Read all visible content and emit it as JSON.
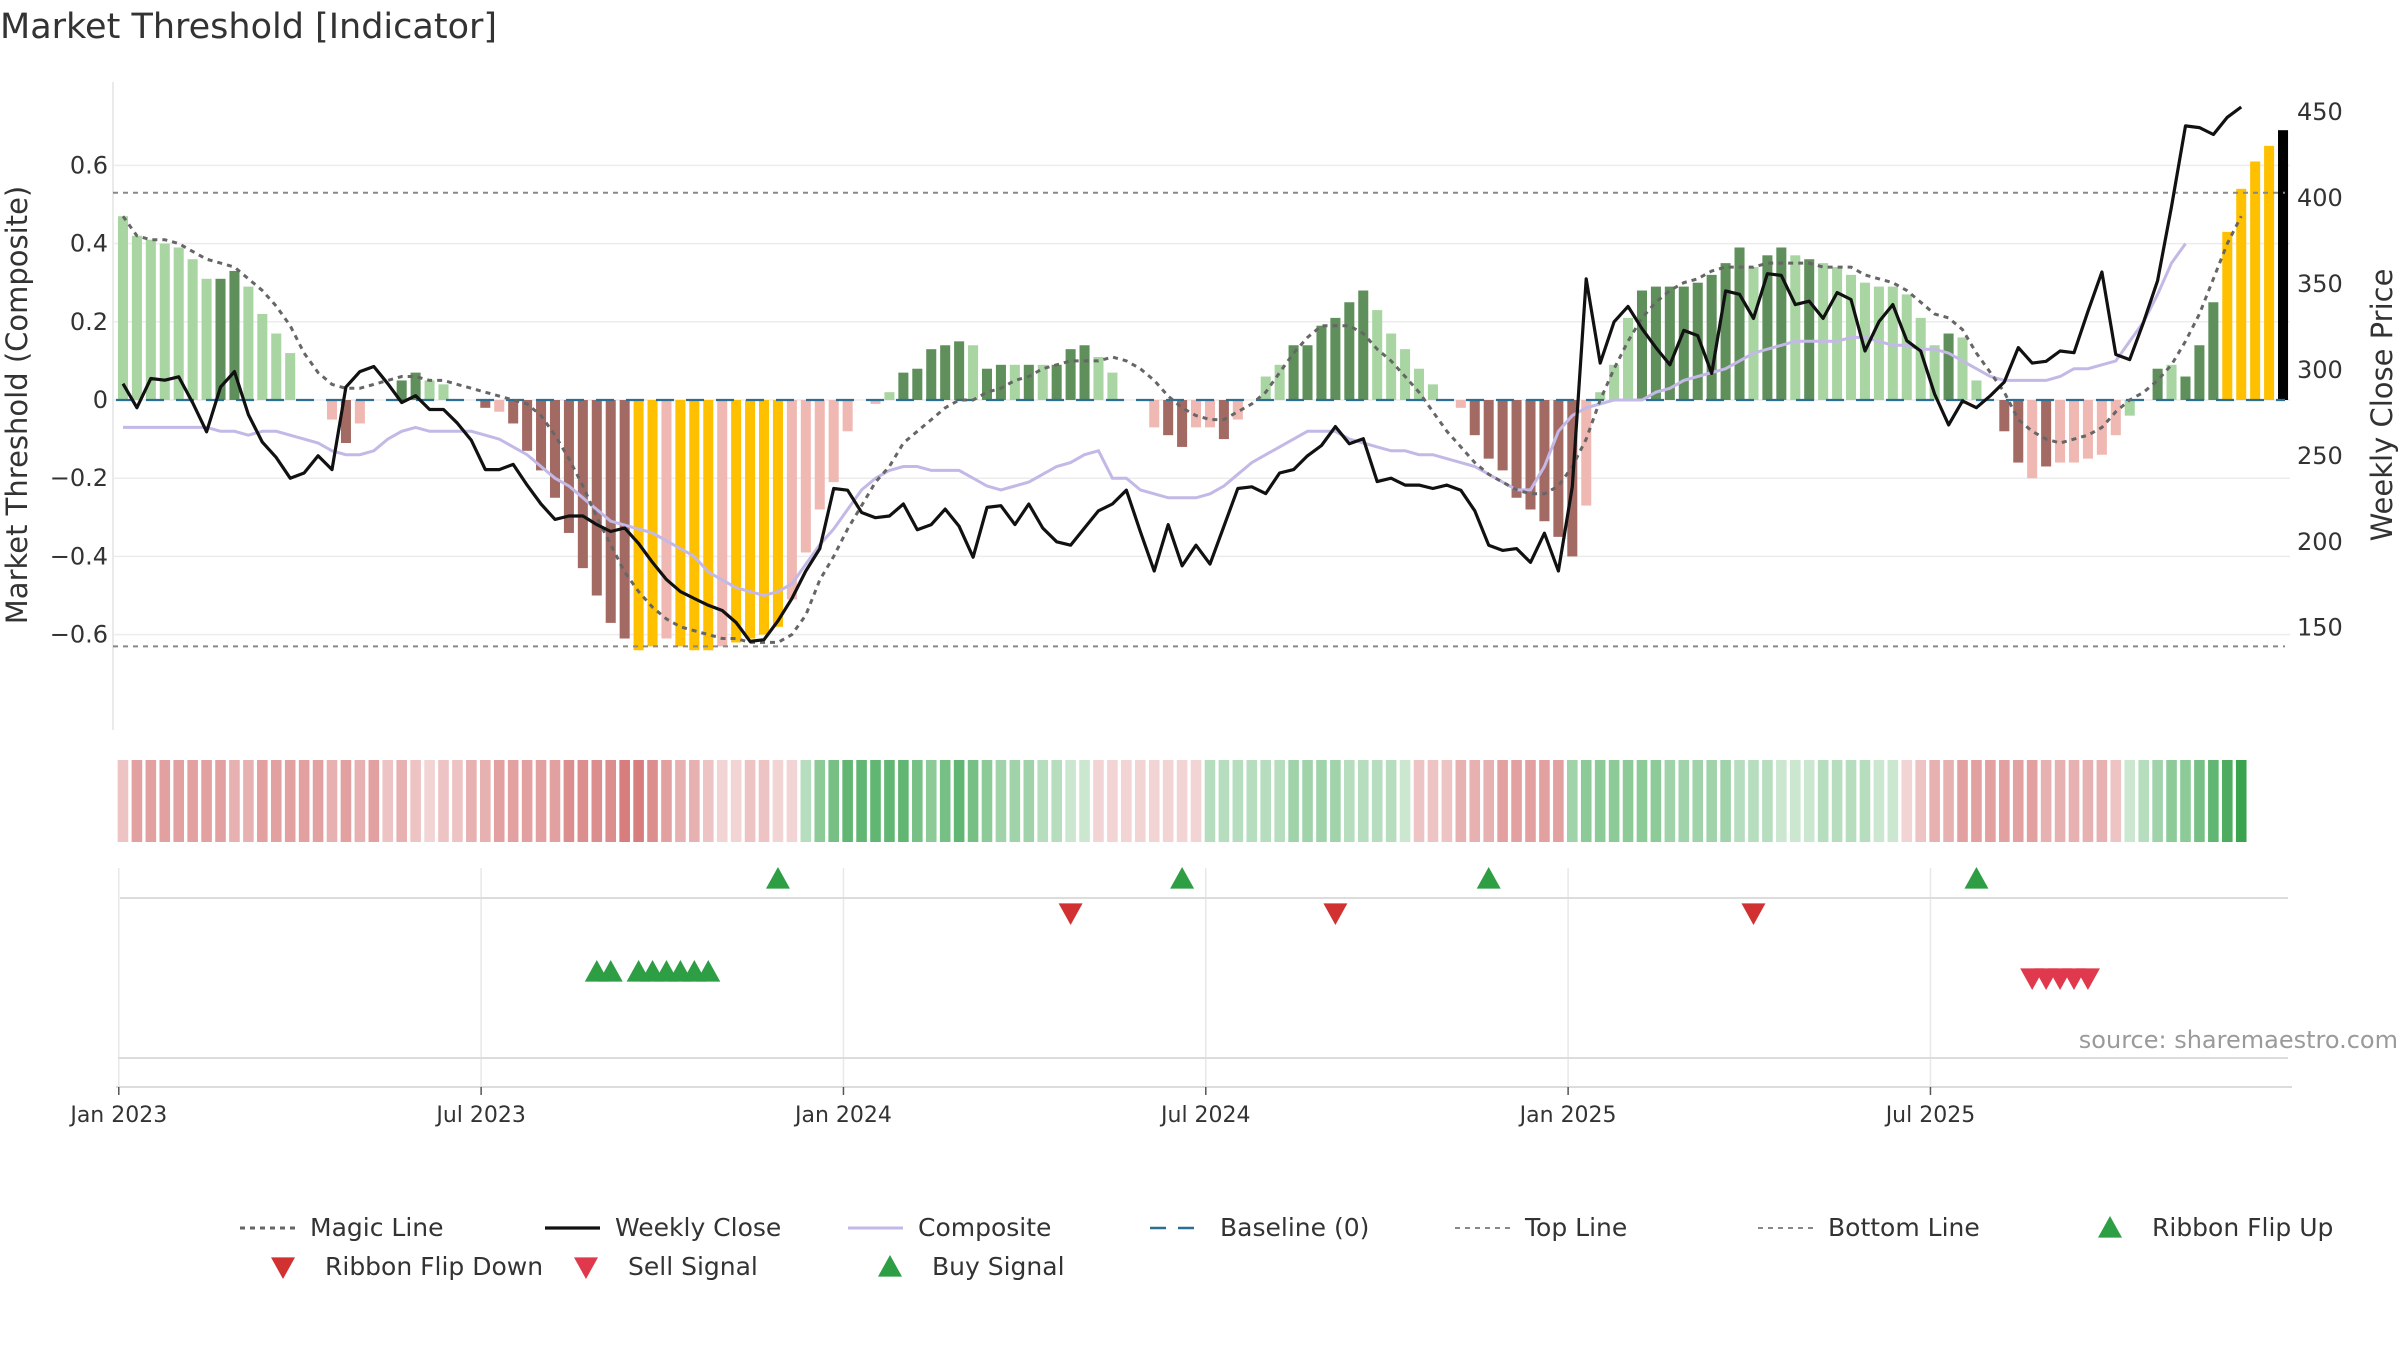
{
  "chart_data": {
    "type": "bar",
    "title": "Market Threshold [Indicator]",
    "ylabel_left": "Market Threshold (Composite)",
    "ylabel_right": "Weekly Close Price",
    "ylim_left": [
      -0.78,
      0.78
    ],
    "ylim_right": [
      105,
      460
    ],
    "left_ticks": [
      "0.6",
      "0.4",
      "0.2",
      "0",
      "−0.2",
      "−0.4",
      "−0.6"
    ],
    "left_tick_values": [
      0.6,
      0.4,
      0.2,
      0,
      -0.2,
      -0.4,
      -0.6
    ],
    "right_ticks": [
      "450",
      "400",
      "350",
      "300",
      "250",
      "200",
      "150"
    ],
    "right_tick_values": [
      450,
      400,
      350,
      300,
      250,
      200,
      150
    ],
    "x_ticks": [
      "Jan 2023",
      "Jul 2023",
      "Jan 2024",
      "Jul 2024",
      "Jan 2025",
      "Jul 2025"
    ],
    "x_tick_weeks": [
      1,
      27,
      53,
      79,
      105,
      131
    ],
    "top_line": 0.53,
    "bottom_line": -0.63,
    "baseline": 0,
    "grid": true,
    "source": "source: sharemaestro.com",
    "composite_bars": [
      0.47,
      0.42,
      0.41,
      0.4,
      0.39,
      0.36,
      0.31,
      0.31,
      0.33,
      0.29,
      0.22,
      0.17,
      0.12,
      0.0,
      0.0,
      -0.05,
      -0.11,
      -0.06,
      0.0,
      0.0,
      0.05,
      0.07,
      0.05,
      0.04,
      0.0,
      0.0,
      -0.02,
      -0.03,
      -0.06,
      -0.13,
      -0.18,
      -0.25,
      -0.34,
      -0.43,
      -0.5,
      -0.57,
      -0.61,
      -0.64,
      -0.63,
      -0.61,
      -0.63,
      -0.64,
      -0.64,
      -0.63,
      -0.62,
      -0.61,
      -0.6,
      -0.58,
      -0.51,
      -0.39,
      -0.28,
      -0.21,
      -0.08,
      0.0,
      -0.01,
      0.02,
      0.07,
      0.08,
      0.13,
      0.14,
      0.15,
      0.14,
      0.08,
      0.09,
      0.09,
      0.09,
      0.09,
      0.09,
      0.13,
      0.14,
      0.11,
      0.07,
      0.0,
      0.0,
      -0.07,
      -0.09,
      -0.12,
      -0.07,
      -0.07,
      -0.1,
      -0.05,
      0.0,
      0.06,
      0.09,
      0.14,
      0.14,
      0.19,
      0.21,
      0.25,
      0.28,
      0.23,
      0.17,
      0.13,
      0.08,
      0.04,
      0.0,
      -0.02,
      -0.09,
      -0.15,
      -0.18,
      -0.25,
      -0.28,
      -0.31,
      -0.35,
      -0.4,
      -0.27,
      0.02,
      0.09,
      0.21,
      0.28,
      0.29,
      0.29,
      0.29,
      0.3,
      0.32,
      0.35,
      0.39,
      0.34,
      0.37,
      0.39,
      0.37,
      0.36,
      0.35,
      0.34,
      0.32,
      0.3,
      0.29,
      0.29,
      0.27,
      0.21,
      0.14,
      0.17,
      0.16,
      0.05,
      0.0,
      -0.08,
      -0.16,
      -0.2,
      -0.17,
      -0.16,
      -0.16,
      -0.15,
      -0.14,
      -0.09,
      -0.04,
      0.0,
      0.08,
      0.09,
      0.06,
      0.14,
      0.25,
      0.43,
      0.54,
      0.61,
      0.65,
      0.69
    ],
    "bar_colors": [
      "#a8d5a2",
      "#a8d5a2",
      "#a8d5a2",
      "#a8d5a2",
      "#a8d5a2",
      "#a8d5a2",
      "#a8d5a2",
      "#5f8f5a",
      "#5f8f5a",
      "#a8d5a2",
      "#a8d5a2",
      "#a8d5a2",
      "#a8d5a2",
      "#a8d5a2",
      "#a8d5a2",
      "#f0b8b2",
      "#a36a64",
      "#f0b8b2",
      "#a8d5a2",
      "#a8d5a2",
      "#5f8f5a",
      "#5f8f5a",
      "#a8d5a2",
      "#a8d5a2",
      "#a8d5a2",
      "#f0b8b2",
      "#a36a64",
      "#f0b8b2",
      "#a36a64",
      "#a36a64",
      "#a36a64",
      "#a36a64",
      "#a36a64",
      "#a36a64",
      "#a36a64",
      "#a36a64",
      "#a36a64",
      "#ffc000",
      "#ffc000",
      "#f0b8b2",
      "#ffc000",
      "#ffc000",
      "#ffc000",
      "#f0b8b2",
      "#ffc000",
      "#ffc000",
      "#ffc000",
      "#ffc000",
      "#f0b8b2",
      "#f0b8b2",
      "#f0b8b2",
      "#f0b8b2",
      "#f0b8b2",
      "#f0b8b2",
      "#f0b8b2",
      "#a8d5a2",
      "#5f8f5a",
      "#5f8f5a",
      "#5f8f5a",
      "#5f8f5a",
      "#5f8f5a",
      "#a8d5a2",
      "#5f8f5a",
      "#5f8f5a",
      "#a8d5a2",
      "#5f8f5a",
      "#a8d5a2",
      "#5f8f5a",
      "#5f8f5a",
      "#5f8f5a",
      "#a8d5a2",
      "#a8d5a2",
      "#a8d5a2",
      "#f0b8b2",
      "#f0b8b2",
      "#a36a64",
      "#a36a64",
      "#f0b8b2",
      "#f0b8b2",
      "#a36a64",
      "#f0b8b2",
      "#a8d5a2",
      "#a8d5a2",
      "#a8d5a2",
      "#5f8f5a",
      "#5f8f5a",
      "#5f8f5a",
      "#5f8f5a",
      "#5f8f5a",
      "#5f8f5a",
      "#a8d5a2",
      "#a8d5a2",
      "#a8d5a2",
      "#a8d5a2",
      "#a8d5a2",
      "#a8d5a2",
      "#f0b8b2",
      "#a36a64",
      "#a36a64",
      "#a36a64",
      "#a36a64",
      "#a36a64",
      "#a36a64",
      "#a36a64",
      "#a36a64",
      "#f0b8b2",
      "#a8d5a2",
      "#a8d5a2",
      "#a8d5a2",
      "#5f8f5a",
      "#5f8f5a",
      "#5f8f5a",
      "#5f8f5a",
      "#5f8f5a",
      "#5f8f5a",
      "#5f8f5a",
      "#5f8f5a",
      "#a8d5a2",
      "#5f8f5a",
      "#5f8f5a",
      "#a8d5a2",
      "#5f8f5a",
      "#a8d5a2",
      "#a8d5a2",
      "#a8d5a2",
      "#a8d5a2",
      "#a8d5a2",
      "#a8d5a2",
      "#a8d5a2",
      "#a8d5a2",
      "#a8d5a2",
      "#5f8f5a",
      "#a8d5a2",
      "#a8d5a2",
      "#f0b8b2",
      "#a36a64",
      "#a36a64",
      "#f0b8b2",
      "#a36a64",
      "#f0b8b2",
      "#f0b8b2",
      "#f0b8b2",
      "#f0b8b2",
      "#f0b8b2",
      "#a8d5a2",
      "#a8d5a2",
      "#5f8f5a",
      "#a8d5a2",
      "#5f8f5a",
      "#5f8f5a",
      "#5f8f5a",
      "#ffc000",
      "#ffc000",
      "#ffc000",
      "#ffc000"
    ],
    "composite_line": [
      -0.07,
      -0.07,
      -0.07,
      -0.07,
      -0.07,
      -0.07,
      -0.07,
      -0.08,
      -0.08,
      -0.09,
      -0.08,
      -0.08,
      -0.09,
      -0.1,
      -0.11,
      -0.13,
      -0.14,
      -0.14,
      -0.13,
      -0.1,
      -0.08,
      -0.07,
      -0.08,
      -0.08,
      -0.08,
      -0.08,
      -0.09,
      -0.1,
      -0.12,
      -0.14,
      -0.17,
      -0.2,
      -0.22,
      -0.25,
      -0.28,
      -0.31,
      -0.32,
      -0.33,
      -0.34,
      -0.36,
      -0.38,
      -0.4,
      -0.44,
      -0.46,
      -0.48,
      -0.49,
      -0.5,
      -0.49,
      -0.47,
      -0.42,
      -0.37,
      -0.33,
      -0.28,
      -0.23,
      -0.2,
      -0.18,
      -0.17,
      -0.17,
      -0.18,
      -0.18,
      -0.18,
      -0.2,
      -0.22,
      -0.23,
      -0.22,
      -0.21,
      -0.19,
      -0.17,
      -0.16,
      -0.14,
      -0.13,
      -0.2,
      -0.2,
      -0.23,
      -0.24,
      -0.25,
      -0.25,
      -0.25,
      -0.24,
      -0.22,
      -0.19,
      -0.16,
      -0.14,
      -0.12,
      -0.1,
      -0.08,
      -0.08,
      -0.08,
      -0.1,
      -0.11,
      -0.12,
      -0.13,
      -0.13,
      -0.14,
      -0.14,
      -0.15,
      -0.16,
      -0.17,
      -0.19,
      -0.21,
      -0.23,
      -0.23,
      -0.17,
      -0.08,
      -0.04,
      -0.02,
      -0.01,
      0.0,
      0.0,
      0.0,
      0.02,
      0.03,
      0.05,
      0.06,
      0.07,
      0.08,
      0.1,
      0.12,
      0.13,
      0.14,
      0.15,
      0.15,
      0.15,
      0.15,
      0.16,
      0.16,
      0.15,
      0.14,
      0.14,
      0.13,
      0.13,
      0.12,
      0.1,
      0.08,
      0.06,
      0.05,
      0.05,
      0.05,
      0.05,
      0.06,
      0.08,
      0.08,
      0.09,
      0.1,
      0.15,
      0.2,
      0.27,
      0.35,
      0.4
    ],
    "weekly_close": [
      292,
      278,
      295,
      294,
      296,
      281,
      264,
      290,
      299,
      274,
      258,
      249,
      237,
      240,
      250,
      242,
      290,
      299,
      302,
      292,
      281,
      285,
      277,
      277,
      269,
      259,
      242,
      242,
      245,
      233,
      222,
      213,
      215,
      215,
      210,
      206,
      208,
      199,
      188,
      178,
      171,
      167,
      163,
      160,
      153,
      142,
      143,
      154,
      167,
      183,
      196,
      231,
      230,
      217,
      214,
      215,
      222,
      207,
      210,
      219,
      209,
      191,
      220,
      221,
      210,
      222,
      208,
      200,
      198,
      208,
      218,
      222,
      230,
      206,
      183,
      210,
      186,
      198,
      187,
      209,
      231,
      232,
      228,
      240,
      242,
      250,
      256,
      267,
      257,
      260,
      235,
      237,
      233,
      233,
      231,
      233,
      230,
      218,
      198,
      195,
      196,
      188,
      205,
      183,
      232,
      353,
      304,
      328,
      337,
      324,
      313,
      303,
      323,
      320,
      298,
      346,
      344,
      330,
      356,
      355,
      338,
      340,
      330,
      345,
      341,
      311,
      328,
      338,
      317,
      311,
      286,
      268,
      282,
      278,
      285,
      293,
      313,
      304,
      305,
      311,
      310,
      334,
      357,
      309,
      306,
      328,
      352,
      395,
      442,
      441,
      437,
      447,
      453
    ],
    "magic_line": [
      0.47,
      0.42,
      0.41,
      0.41,
      0.4,
      0.38,
      0.36,
      0.35,
      0.34,
      0.31,
      0.28,
      0.24,
      0.19,
      0.12,
      0.07,
      0.04,
      0.03,
      0.03,
      0.04,
      0.05,
      0.06,
      0.06,
      0.05,
      0.05,
      0.04,
      0.03,
      0.02,
      0.01,
      0.0,
      -0.01,
      -0.04,
      -0.09,
      -0.15,
      -0.22,
      -0.3,
      -0.37,
      -0.44,
      -0.49,
      -0.53,
      -0.56,
      -0.58,
      -0.59,
      -0.6,
      -0.61,
      -0.61,
      -0.62,
      -0.62,
      -0.62,
      -0.6,
      -0.55,
      -0.46,
      -0.4,
      -0.33,
      -0.27,
      -0.21,
      -0.17,
      -0.11,
      -0.08,
      -0.05,
      -0.02,
      0.0,
      0.0,
      0.02,
      0.03,
      0.05,
      0.06,
      0.08,
      0.09,
      0.1,
      0.1,
      0.1,
      0.11,
      0.1,
      0.08,
      0.05,
      0.01,
      -0.02,
      -0.04,
      -0.05,
      -0.05,
      -0.03,
      -0.01,
      0.02,
      0.07,
      0.12,
      0.16,
      0.19,
      0.19,
      0.19,
      0.17,
      0.13,
      0.1,
      0.06,
      0.02,
      -0.03,
      -0.08,
      -0.12,
      -0.16,
      -0.19,
      -0.21,
      -0.23,
      -0.24,
      -0.24,
      -0.22,
      -0.17,
      -0.1,
      0.0,
      0.08,
      0.15,
      0.21,
      0.25,
      0.28,
      0.3,
      0.31,
      0.33,
      0.34,
      0.34,
      0.34,
      0.35,
      0.35,
      0.35,
      0.35,
      0.34,
      0.34,
      0.34,
      0.32,
      0.31,
      0.3,
      0.28,
      0.25,
      0.22,
      0.21,
      0.18,
      0.12,
      0.07,
      0.02,
      -0.05,
      -0.08,
      -0.1,
      -0.11,
      -0.1,
      -0.09,
      -0.07,
      -0.03,
      0.0,
      0.02,
      0.05,
      0.09,
      0.15,
      0.22,
      0.31,
      0.4,
      0.47
    ],
    "ribbon": [
      0.35,
      0.55,
      0.55,
      0.55,
      0.55,
      0.55,
      0.55,
      0.55,
      0.45,
      0.45,
      0.55,
      0.55,
      0.55,
      0.55,
      0.55,
      0.45,
      0.55,
      0.45,
      0.55,
      0.35,
      0.45,
      0.35,
      0.25,
      0.35,
      0.35,
      0.45,
      0.45,
      0.55,
      0.55,
      0.55,
      0.55,
      0.55,
      0.65,
      0.65,
      0.65,
      0.65,
      0.75,
      0.75,
      0.65,
      0.55,
      0.45,
      0.45,
      0.35,
      0.25,
      0.25,
      0.35,
      0.35,
      0.25,
      0.25,
      -0.35,
      -0.55,
      -0.65,
      -0.75,
      -0.75,
      -0.75,
      -0.75,
      -0.75,
      -0.65,
      -0.55,
      -0.65,
      -0.75,
      -0.65,
      -0.55,
      -0.45,
      -0.45,
      -0.45,
      -0.35,
      -0.35,
      -0.25,
      -0.25,
      0.25,
      0.25,
      0.25,
      0.25,
      0.25,
      0.25,
      0.25,
      0.25,
      -0.35,
      -0.35,
      -0.35,
      -0.35,
      -0.35,
      -0.35,
      -0.45,
      -0.45,
      -0.45,
      -0.45,
      -0.35,
      -0.35,
      -0.35,
      -0.35,
      -0.25,
      0.35,
      0.35,
      0.35,
      0.45,
      0.45,
      0.45,
      0.55,
      0.55,
      0.55,
      0.55,
      0.55,
      -0.45,
      -0.55,
      -0.55,
      -0.55,
      -0.55,
      -0.55,
      -0.55,
      -0.45,
      -0.45,
      -0.45,
      -0.45,
      -0.45,
      -0.35,
      -0.35,
      -0.35,
      -0.25,
      -0.25,
      -0.25,
      -0.35,
      -0.35,
      -0.35,
      -0.35,
      -0.25,
      -0.25,
      0.25,
      0.35,
      0.45,
      0.45,
      0.55,
      0.55,
      0.55,
      0.55,
      0.55,
      0.55,
      0.45,
      0.45,
      0.45,
      0.45,
      0.45,
      0.35,
      -0.25,
      -0.35,
      -0.45,
      -0.55,
      -0.55,
      -0.65,
      -0.75,
      -0.85,
      -0.95
    ],
    "ribbon_flip_up_weeks": [
      48,
      77,
      99,
      134
    ],
    "ribbon_flip_down_weeks": [
      69,
      88,
      118
    ],
    "buy_signal_weeks": [
      35,
      36,
      38,
      39,
      40,
      41,
      42,
      43
    ],
    "sell_signal_weeks": [
      138,
      139,
      140,
      141,
      142
    ],
    "series": [
      {
        "name": "Magic Line",
        "color": "#666666"
      },
      {
        "name": "Weekly Close",
        "color": "#111111"
      },
      {
        "name": "Composite",
        "color": "#c3b8e6"
      },
      {
        "name": "Baseline (0)",
        "color": "#2b6e96"
      },
      {
        "name": "Top Line",
        "color": "#888888"
      },
      {
        "name": "Bottom Line",
        "color": "#888888"
      },
      {
        "name": "Ribbon Flip Up",
        "color": "#2e9e44"
      },
      {
        "name": "Ribbon Flip Down",
        "color": "#d23131"
      },
      {
        "name": "Sell Signal",
        "color": "#e0394d"
      },
      {
        "name": "Buy Signal",
        "color": "#2e9e44"
      }
    ]
  }
}
